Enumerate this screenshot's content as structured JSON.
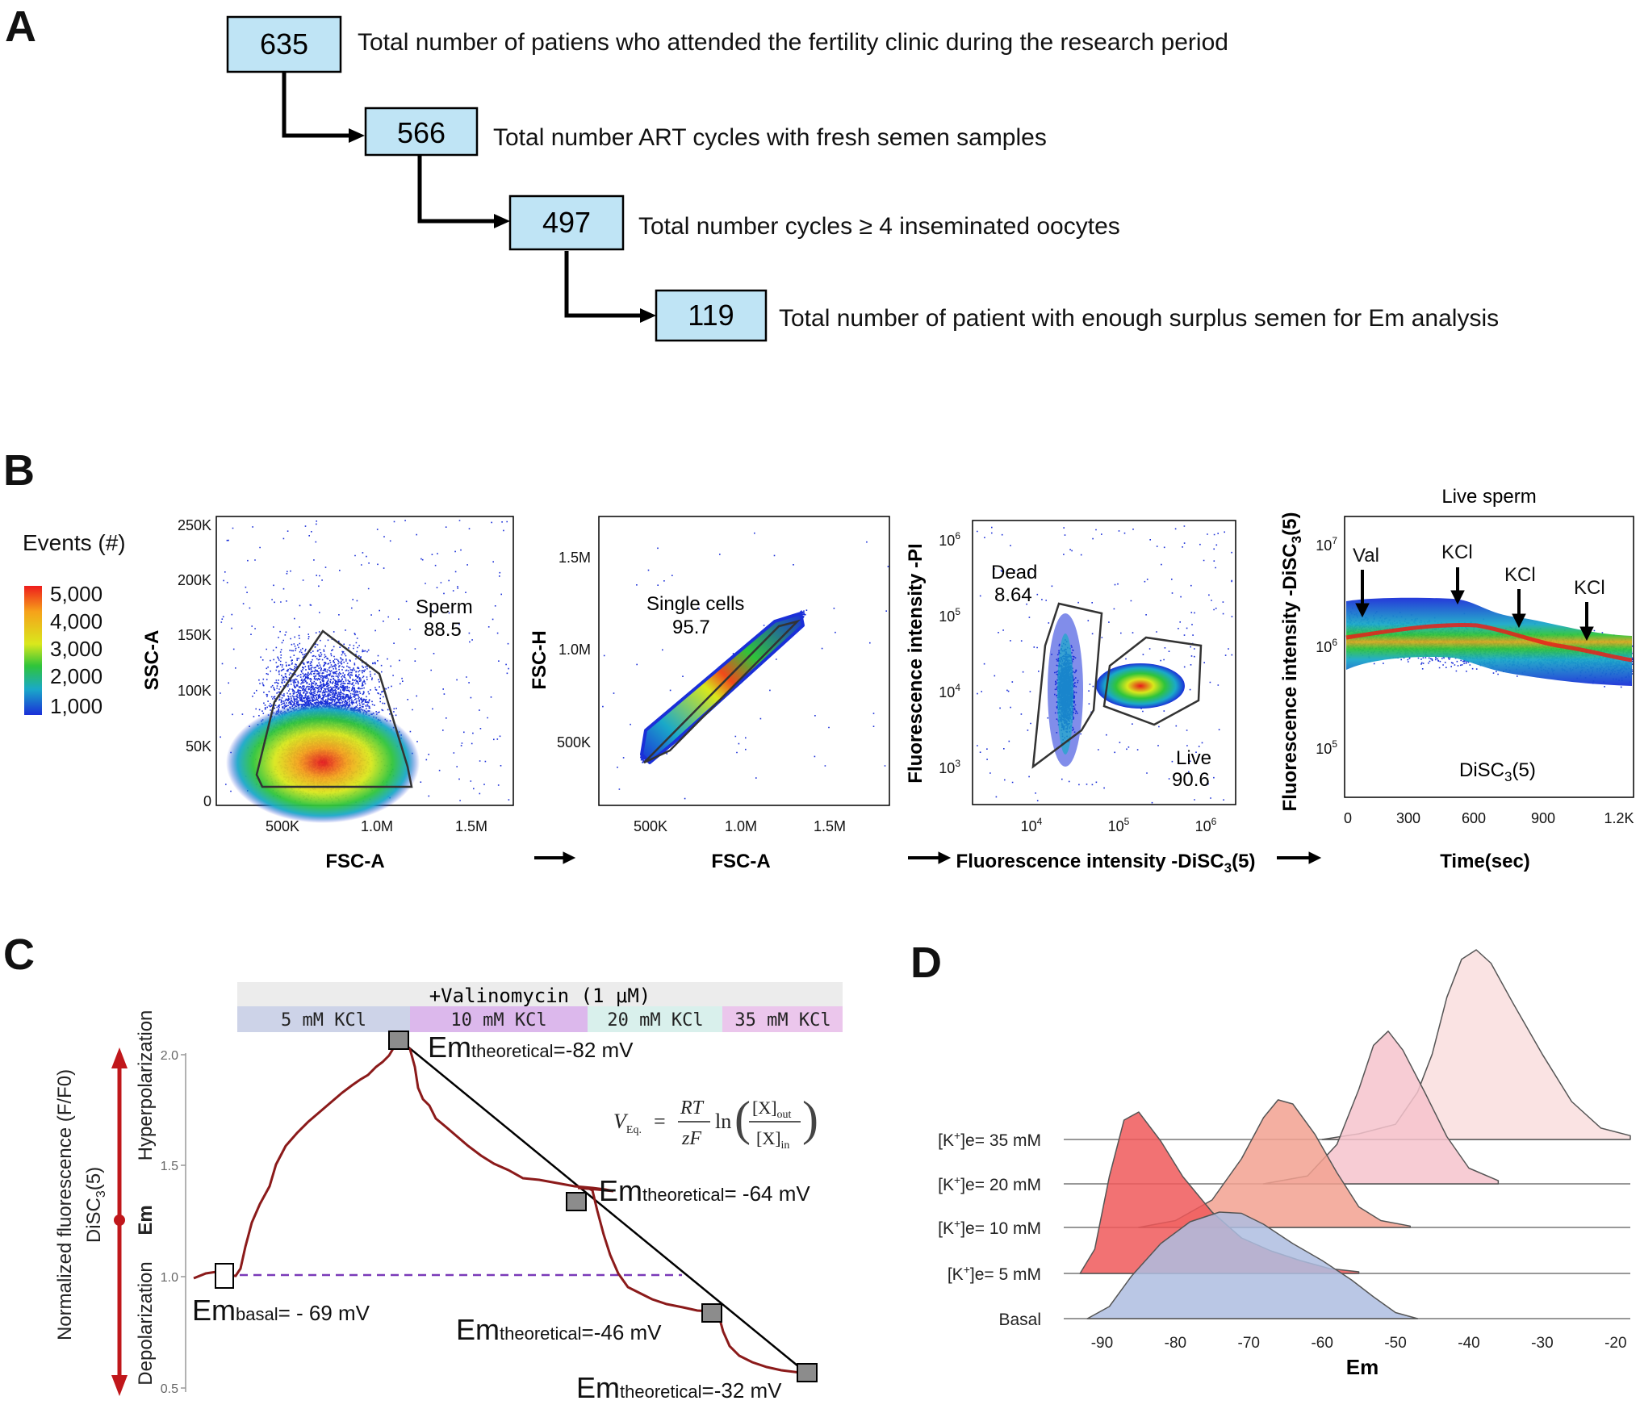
{
  "panel_labels": {
    "a": "A",
    "b": "B",
    "c": "C",
    "d": "D"
  },
  "flow": {
    "steps": [
      {
        "n": "635",
        "text": "Total number of patiens who attended the fertility clinic during the research period"
      },
      {
        "n": "566",
        "text": "Total number ART cycles with fresh semen samples"
      },
      {
        "n": "497",
        "text": "Total number  cycles ≥ 4 inseminated oocytes"
      },
      {
        "n": "119",
        "text": "Total number of patient with enough surplus semen for Em analysis"
      }
    ],
    "box_fill": "#bfe4f5"
  },
  "flow_panels": {
    "colorbar": {
      "title": "Events (#)",
      "ticks": [
        "5,000",
        "4,000",
        "3,000",
        "2,000",
        "1,000"
      ]
    },
    "p1": {
      "xlabel": "FSC-A",
      "ylabel": "SSC-A",
      "xticks": [
        "500K",
        "1.0M",
        "1.5M"
      ],
      "yticks": [
        "250K",
        "200K",
        "150K",
        "100K",
        "50K",
        "0"
      ],
      "gate_name": "Sperm",
      "gate_value": "88.5"
    },
    "p2": {
      "xlabel": "FSC-A",
      "ylabel": "FSC-H",
      "xticks": [
        "500K",
        "1.0M",
        "1.5M"
      ],
      "yticks": [
        "1.5M",
        "1.0M",
        "500K"
      ],
      "gate_name": "Single cells",
      "gate_value": "95.7"
    },
    "p3": {
      "xlabel": "Fluorescence intensity -DiSC",
      "xlabel_sub": "3",
      "xlabel_tail": "(5)",
      "ylabel": "Fluorescence intensity -PI",
      "xticks": [
        "4",
        "5",
        "6"
      ],
      "yticks": [
        "6",
        "5",
        "4",
        "3"
      ],
      "tick_base": "10",
      "dead_name": "Dead",
      "dead_value": "8.64",
      "live_name": "Live",
      "live_value": "90.6"
    },
    "p4": {
      "title": "Live sperm",
      "xlabel": "Time(sec)",
      "ylabel": "Fluorescence intensity -DiSC",
      "ylabel_sub": "3",
      "ylabel_tail": "(5)",
      "xticks": [
        "0",
        "300",
        "600",
        "900",
        "1.2K"
      ],
      "yticks": [
        "7",
        "6",
        "5"
      ],
      "tick_base": "10",
      "arrows": [
        "Val",
        "KCl",
        "KCl",
        "KCl"
      ],
      "inner_label": "DiSC",
      "inner_sub": "3",
      "inner_tail": "(5)"
    }
  },
  "panel_c": {
    "ylabel_line1": "Normalized fluorescence   (F/F0)",
    "ylabel_line2": "DiSC",
    "ylabel_line2_sub": "3",
    "ylabel_line2_tail": "(5)",
    "hyper": "Hyperpolarization",
    "em": "Em",
    "depol": "Depolarization",
    "yticks": [
      "2.0",
      "1.5",
      "1.0",
      "0.5"
    ],
    "header": "+Valinomycin (1 μM)",
    "segments": [
      {
        "label": "5 mM KCl",
        "color": "#cdd3e8"
      },
      {
        "label": "10 mM KCl",
        "color": "#dcb8ec"
      },
      {
        "label": "20 mM KCl",
        "color": "#d9f0ec"
      },
      {
        "label": "35 mM KCl",
        "color": "#ebc6ec"
      }
    ],
    "annotations": [
      {
        "main": "Em",
        "sub": "basal",
        "val": "= - 69 mV"
      },
      {
        "main": "Em",
        "sub": "theoretical",
        "val": "=-82 mV"
      },
      {
        "main": "Em",
        "sub": "theoretical",
        "val": "= -64 mV"
      },
      {
        "main": "Em",
        "sub": "theoretical",
        "val": "=-46 mV"
      },
      {
        "main": "Em",
        "sub": "theoretical",
        "val": "=-32 mV"
      }
    ],
    "formula": {
      "v": "V",
      "v_sub": "Eq.",
      "num": "RT",
      "den": "zF",
      "ln": "ln",
      "out": "[X]",
      "out_sub": "out",
      "in": "[X]",
      "in_sub": "in"
    },
    "trace_color": "#8b1a1a"
  },
  "chart_data": {
    "type": "area",
    "xlabel": "Em",
    "xlim": [
      -95,
      -18
    ],
    "xticks": [
      "-90",
      "-80",
      "-70",
      "-60",
      "-50",
      "-40",
      "-30",
      "-20"
    ],
    "series": [
      {
        "name": "[K⁺]e= 35 mM",
        "label_main": "[K",
        "label_sup": "+",
        "label_tail": "]e= 35 mM",
        "color": "#f9dede",
        "points": [
          [
            -60,
            0
          ],
          [
            -55,
            0.03
          ],
          [
            -50,
            0.08
          ],
          [
            -47,
            0.25
          ],
          [
            -45,
            0.45
          ],
          [
            -43,
            0.75
          ],
          [
            -41,
            0.95
          ],
          [
            -39,
            1.0
          ],
          [
            -37,
            0.93
          ],
          [
            -34,
            0.72
          ],
          [
            -30,
            0.45
          ],
          [
            -26,
            0.2
          ],
          [
            -22,
            0.06
          ],
          [
            -18,
            0.02
          ]
        ]
      },
      {
        "name": "[K⁺]e= 20 mM",
        "label_main": "[K",
        "label_sup": "+",
        "label_tail": "]e= 20 mM",
        "color": "#f6c3cc",
        "points": [
          [
            -68,
            0
          ],
          [
            -62,
            0.05
          ],
          [
            -58,
            0.25
          ],
          [
            -55,
            0.6
          ],
          [
            -53,
            0.88
          ],
          [
            -51,
            0.97
          ],
          [
            -49,
            0.85
          ],
          [
            -46,
            0.58
          ],
          [
            -43,
            0.3
          ],
          [
            -40,
            0.1
          ],
          [
            -36,
            0.02
          ]
        ]
      },
      {
        "name": "[K⁺]e= 10 mM",
        "label_main": "[K",
        "label_sup": "+",
        "label_tail": "]e= 10 mM",
        "color": "#f2a191",
        "points": [
          [
            -85,
            0
          ],
          [
            -80,
            0.05
          ],
          [
            -75,
            0.2
          ],
          [
            -71,
            0.5
          ],
          [
            -68,
            0.8
          ],
          [
            -66,
            0.93
          ],
          [
            -64,
            0.9
          ],
          [
            -61,
            0.68
          ],
          [
            -58,
            0.4
          ],
          [
            -55,
            0.15
          ],
          [
            -52,
            0.05
          ],
          [
            -48,
            0.01
          ]
        ]
      },
      {
        "name": "[K⁺]e=  5 mM",
        "label_main": "[K",
        "label_sup": "+",
        "label_tail": "]e=  5 mM",
        "color": "#f0595b",
        "points": [
          [
            -93,
            0
          ],
          [
            -91,
            0.15
          ],
          [
            -89,
            0.6
          ],
          [
            -87,
            0.95
          ],
          [
            -85,
            1.0
          ],
          [
            -82,
            0.82
          ],
          [
            -79,
            0.6
          ],
          [
            -75,
            0.38
          ],
          [
            -71,
            0.22
          ],
          [
            -67,
            0.14
          ],
          [
            -63,
            0.08
          ],
          [
            -59,
            0.03
          ],
          [
            -55,
            0.01
          ]
        ]
      },
      {
        "name": "Basal",
        "label_main": "Basal",
        "label_sup": "",
        "label_tail": "",
        "color": "#aebde0",
        "points": [
          [
            -92,
            0
          ],
          [
            -89,
            0.1
          ],
          [
            -86,
            0.35
          ],
          [
            -82,
            0.62
          ],
          [
            -78,
            0.8
          ],
          [
            -74,
            0.88
          ],
          [
            -71,
            0.87
          ],
          [
            -68,
            0.78
          ],
          [
            -64,
            0.62
          ],
          [
            -60,
            0.48
          ],
          [
            -56,
            0.32
          ],
          [
            -53,
            0.18
          ],
          [
            -50,
            0.05
          ],
          [
            -47,
            0.0
          ]
        ]
      }
    ]
  }
}
